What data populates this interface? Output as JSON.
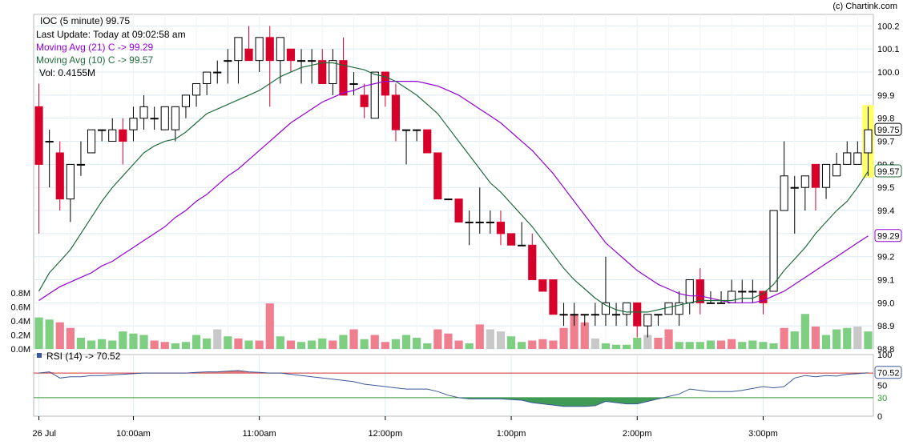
{
  "header": {
    "credit": "(c) Chartink.com",
    "title": "IOC (5 minute) 99.75",
    "last_update": "Last Update: Today at 09:02:58 am",
    "ma21_label": "Moving Avg (21) C -> 99.29",
    "ma10_label": "Moving Avg (10) C -> 99.57",
    "vol_label": "Vol: 0.4155M",
    "rsi_label": "RSI (14) -> 70.52"
  },
  "colors": {
    "up_candle": "#000000",
    "down_candle": "#d6002a",
    "ma21": "#9400d3",
    "ma10": "#1f6b3a",
    "vol_up": "#7fcf83",
    "vol_down": "#ef7f8f",
    "vol_neutral": "#c8c8c8",
    "highlight": "#ffff66",
    "rsi_line": "#3b5998",
    "grid": "#dcebf3"
  },
  "chart_data": [
    {
      "type": "candlestick",
      "title": "IOC (5 minute)",
      "ylim": [
        98.8,
        100.25
      ],
      "y_ticks": [
        98.8,
        98.9,
        99.0,
        99.1,
        99.2,
        99.3,
        99.4,
        99.5,
        99.6,
        99.7,
        99.8,
        99.9,
        100.0,
        100.1,
        100.2
      ],
      "y_tick_labels": [
        "98.8",
        "98.9",
        "99.0",
        "99.1",
        "99.2",
        "99.3",
        "99.4",
        "99.5",
        "99.6",
        "99.7",
        "99.8",
        "99.9",
        "100.0",
        "100.1",
        "100.2"
      ],
      "x_tick_labels": [
        "26 Jul",
        "10:00am",
        "11:00am",
        "12:00pm",
        "1:00pm",
        "2:00pm",
        "3:00pm"
      ],
      "x_tick_index": [
        0,
        9,
        21,
        33,
        45,
        57,
        69
      ],
      "price_tags": [
        {
          "label": "99.75",
          "value": 99.75
        },
        {
          "label": "99.57",
          "value": 99.57
        },
        {
          "label": "99.29",
          "value": 99.29
        }
      ],
      "candles": [
        {
          "o": 99.85,
          "h": 99.95,
          "l": 99.3,
          "c": 99.6
        },
        {
          "o": 99.7,
          "h": 99.75,
          "l": 99.5,
          "c": 99.7
        },
        {
          "o": 99.65,
          "h": 99.7,
          "l": 99.4,
          "c": 99.45
        },
        {
          "o": 99.45,
          "h": 99.6,
          "l": 99.35,
          "c": 99.6
        },
        {
          "o": 99.6,
          "h": 99.7,
          "l": 99.55,
          "c": 99.6
        },
        {
          "o": 99.65,
          "h": 99.75,
          "l": 99.65,
          "c": 99.75
        },
        {
          "o": 99.75,
          "h": 99.75,
          "l": 99.7,
          "c": 99.75
        },
        {
          "o": 99.7,
          "h": 99.8,
          "l": 99.7,
          "c": 99.75
        },
        {
          "o": 99.75,
          "h": 99.8,
          "l": 99.6,
          "c": 99.7
        },
        {
          "o": 99.75,
          "h": 99.85,
          "l": 99.7,
          "c": 99.8
        },
        {
          "o": 99.8,
          "h": 99.9,
          "l": 99.75,
          "c": 99.85
        },
        {
          "o": 99.8,
          "h": 99.85,
          "l": 99.75,
          "c": 99.8
        },
        {
          "o": 99.75,
          "h": 99.85,
          "l": 99.75,
          "c": 99.85
        },
        {
          "o": 99.75,
          "h": 99.85,
          "l": 99.7,
          "c": 99.85
        },
        {
          "o": 99.85,
          "h": 99.9,
          "l": 99.8,
          "c": 99.9
        },
        {
          "o": 99.9,
          "h": 99.95,
          "l": 99.85,
          "c": 99.95
        },
        {
          "o": 99.95,
          "h": 100.0,
          "l": 99.9,
          "c": 100.0
        },
        {
          "o": 100.0,
          "h": 100.05,
          "l": 99.95,
          "c": 100.0
        },
        {
          "o": 100.05,
          "h": 100.1,
          "l": 99.95,
          "c": 100.05
        },
        {
          "o": 100.05,
          "h": 100.15,
          "l": 99.95,
          "c": 100.15
        },
        {
          "o": 100.1,
          "h": 100.2,
          "l": 100.05,
          "c": 100.05
        },
        {
          "o": 100.05,
          "h": 100.15,
          "l": 100.0,
          "c": 100.15
        },
        {
          "o": 100.15,
          "h": 100.2,
          "l": 99.85,
          "c": 100.05
        },
        {
          "o": 100.05,
          "h": 100.15,
          "l": 99.95,
          "c": 100.15
        },
        {
          "o": 100.1,
          "h": 100.1,
          "l": 100.0,
          "c": 100.05
        },
        {
          "o": 100.05,
          "h": 100.1,
          "l": 99.95,
          "c": 100.05
        },
        {
          "o": 100.05,
          "h": 100.1,
          "l": 99.95,
          "c": 100.05
        },
        {
          "o": 100.05,
          "h": 100.1,
          "l": 99.95,
          "c": 99.95
        },
        {
          "o": 99.95,
          "h": 100.1,
          "l": 99.9,
          "c": 100.05
        },
        {
          "o": 100.05,
          "h": 100.15,
          "l": 99.9,
          "c": 99.9
        },
        {
          "o": 99.95,
          "h": 100.0,
          "l": 99.9,
          "c": 99.95
        },
        {
          "o": 99.9,
          "h": 99.95,
          "l": 99.8,
          "c": 99.85
        },
        {
          "o": 99.8,
          "h": 100.0,
          "l": 99.8,
          "c": 100.0
        },
        {
          "o": 100.0,
          "h": 100.0,
          "l": 99.85,
          "c": 99.9
        },
        {
          "o": 99.9,
          "h": 99.95,
          "l": 99.7,
          "c": 99.75
        },
        {
          "o": 99.75,
          "h": 99.75,
          "l": 99.6,
          "c": 99.75
        },
        {
          "o": 99.75,
          "h": 99.75,
          "l": 99.7,
          "c": 99.75
        },
        {
          "o": 99.75,
          "h": 99.75,
          "l": 99.65,
          "c": 99.65
        },
        {
          "o": 99.65,
          "h": 99.65,
          "l": 99.45,
          "c": 99.45
        },
        {
          "o": 99.45,
          "h": 99.45,
          "l": 99.45,
          "c": 99.45
        },
        {
          "o": 99.45,
          "h": 99.45,
          "l": 99.35,
          "c": 99.35
        },
        {
          "o": 99.35,
          "h": 99.4,
          "l": 99.25,
          "c": 99.35
        },
        {
          "o": 99.35,
          "h": 99.5,
          "l": 99.3,
          "c": 99.35
        },
        {
          "o": 99.35,
          "h": 99.4,
          "l": 99.3,
          "c": 99.35
        },
        {
          "o": 99.35,
          "h": 99.4,
          "l": 99.25,
          "c": 99.3
        },
        {
          "o": 99.3,
          "h": 99.3,
          "l": 99.25,
          "c": 99.25
        },
        {
          "o": 99.25,
          "h": 99.35,
          "l": 99.25,
          "c": 99.25
        },
        {
          "o": 99.25,
          "h": 99.3,
          "l": 99.1,
          "c": 99.1
        },
        {
          "o": 99.1,
          "h": 99.1,
          "l": 99.05,
          "c": 99.05
        },
        {
          "o": 99.1,
          "h": 99.1,
          "l": 98.95,
          "c": 98.95
        },
        {
          "o": 98.95,
          "h": 99.0,
          "l": 98.9,
          "c": 98.95
        },
        {
          "o": 98.95,
          "h": 99.0,
          "l": 98.9,
          "c": 98.95
        },
        {
          "o": 98.95,
          "h": 98.95,
          "l": 98.9,
          "c": 98.95
        },
        {
          "o": 98.95,
          "h": 99.0,
          "l": 98.9,
          "c": 98.95
        },
        {
          "o": 98.95,
          "h": 99.2,
          "l": 98.9,
          "c": 99.0
        },
        {
          "o": 98.95,
          "h": 99.0,
          "l": 98.9,
          "c": 98.95
        },
        {
          "o": 98.95,
          "h": 99.0,
          "l": 98.9,
          "c": 99.0
        },
        {
          "o": 99.0,
          "h": 99.0,
          "l": 98.85,
          "c": 98.9
        },
        {
          "o": 98.9,
          "h": 98.95,
          "l": 98.85,
          "c": 98.95
        },
        {
          "o": 98.95,
          "h": 98.95,
          "l": 98.9,
          "c": 98.95
        },
        {
          "o": 98.95,
          "h": 99.0,
          "l": 98.95,
          "c": 99.0
        },
        {
          "o": 98.95,
          "h": 99.05,
          "l": 98.9,
          "c": 99.0
        },
        {
          "o": 99.0,
          "h": 99.1,
          "l": 98.95,
          "c": 99.1
        }
      ],
      "candles_tail": [
        {
          "o": 99.1,
          "h": 99.15,
          "l": 98.95,
          "c": 99.0
        },
        {
          "o": 99.0,
          "h": 99.05,
          "l": 99.0,
          "c": 99.0
        },
        {
          "o": 99.0,
          "h": 99.05,
          "l": 99.0,
          "c": 99.0
        },
        {
          "o": 99.0,
          "h": 99.1,
          "l": 99.0,
          "c": 99.05
        },
        {
          "o": 99.05,
          "h": 99.1,
          "l": 99.0,
          "c": 99.05
        },
        {
          "o": 99.05,
          "h": 99.1,
          "l": 99.0,
          "c": 99.05
        },
        {
          "o": 99.05,
          "h": 99.05,
          "l": 98.95,
          "c": 99.0
        },
        {
          "o": 99.05,
          "h": 99.4,
          "l": 99.05,
          "c": 99.4
        },
        {
          "o": 99.4,
          "h": 99.7,
          "l": 99.4,
          "c": 99.55
        },
        {
          "o": 99.5,
          "h": 99.55,
          "l": 99.3,
          "c": 99.5
        },
        {
          "o": 99.5,
          "h": 99.55,
          "l": 99.4,
          "c": 99.55
        },
        {
          "o": 99.6,
          "h": 99.6,
          "l": 99.4,
          "c": 99.5
        },
        {
          "o": 99.5,
          "h": 99.6,
          "l": 99.45,
          "c": 99.6
        },
        {
          "o": 99.55,
          "h": 99.65,
          "l": 99.55,
          "c": 99.6
        },
        {
          "o": 99.6,
          "h": 99.7,
          "l": 99.6,
          "c": 99.65
        },
        {
          "o": 99.6,
          "h": 99.7,
          "l": 99.6,
          "c": 99.65
        },
        {
          "o": 99.65,
          "h": 99.85,
          "l": 99.55,
          "c": 99.75
        }
      ],
      "ma21": [
        99.01,
        99.04,
        99.07,
        99.09,
        99.11,
        99.13,
        99.16,
        99.18,
        99.21,
        99.24,
        99.27,
        99.3,
        99.33,
        99.37,
        99.4,
        99.44,
        99.47,
        99.51,
        99.55,
        99.58,
        99.62,
        99.66,
        99.7,
        99.74,
        99.78,
        99.81,
        99.84,
        99.87,
        99.89,
        99.91,
        99.92,
        99.94,
        99.95,
        99.96,
        99.96,
        99.96,
        99.96,
        99.95,
        99.94,
        99.92,
        99.9,
        99.87,
        99.84,
        99.81,
        99.78,
        99.74,
        99.7,
        99.66,
        99.61,
        99.56,
        99.5,
        99.44,
        99.38,
        99.32,
        99.26,
        99.22,
        99.18,
        99.14,
        99.11,
        99.08,
        99.06,
        99.04,
        99.03,
        99.03,
        99.02,
        99.01,
        99.0,
        99.0,
        99.0,
        99.01,
        99.03,
        99.05,
        99.08,
        99.11,
        99.14,
        99.17,
        99.2,
        99.23,
        99.26,
        99.29
      ],
      "ma10": [
        99.05,
        99.13,
        99.18,
        99.23,
        99.3,
        99.37,
        99.44,
        99.5,
        99.55,
        99.6,
        99.65,
        99.68,
        99.7,
        99.71,
        99.74,
        99.78,
        99.82,
        99.84,
        99.86,
        99.88,
        99.9,
        99.92,
        99.95,
        99.98,
        100.0,
        100.02,
        100.03,
        100.04,
        100.04,
        100.03,
        100.02,
        100.01,
        99.99,
        99.98,
        99.96,
        99.93,
        99.9,
        99.86,
        99.82,
        99.76,
        99.7,
        99.64,
        99.58,
        99.52,
        99.48,
        99.43,
        99.38,
        99.33,
        99.27,
        99.21,
        99.15,
        99.1,
        99.06,
        99.02,
        98.99,
        98.97,
        98.96,
        98.96,
        98.96,
        98.97,
        98.98,
        98.99,
        99.0,
        99.01,
        99.01,
        99.01,
        99.01,
        99.02,
        99.02,
        99.04,
        99.08,
        99.14,
        99.19,
        99.24,
        99.3,
        99.35,
        99.4,
        99.44,
        99.5,
        99.57
      ]
    },
    {
      "type": "bar",
      "title": "Vol",
      "ylim": [
        0,
        0.8
      ],
      "y_ticks": [
        0,
        0.2,
        0.4,
        0.6,
        0.8
      ],
      "y_tick_labels": [
        "0.0M",
        "0.2M",
        "0.4M",
        "0.6M",
        "0.8M"
      ],
      "volumes": [
        0.45,
        0.42,
        0.38,
        0.3,
        0.16,
        0.12,
        0.14,
        0.12,
        0.25,
        0.22,
        0.2,
        0.12,
        0.1,
        0.08,
        0.1,
        0.2,
        0.15,
        0.28,
        0.18,
        0.15,
        0.12,
        0.12,
        0.65,
        0.18,
        0.12,
        0.1,
        0.12,
        0.15,
        0.12,
        0.2,
        0.28,
        0.14,
        0.2,
        0.1,
        0.14,
        0.2,
        0.16,
        0.08,
        0.28,
        0.22,
        0.12,
        0.08,
        0.35,
        0.28,
        0.25,
        0.18,
        0.1,
        0.12,
        0.14,
        0.12,
        0.3,
        0.5,
        0.38,
        0.15,
        0.08,
        0.06,
        0.06,
        0.16,
        0.2,
        0.16,
        0.28,
        0.1,
        0.1,
        0.1,
        0.12,
        0.12,
        0.14,
        0.1,
        0.12,
        0.1,
        0.08,
        0.3,
        0.25,
        0.5,
        0.32,
        0.2,
        0.28,
        0.3,
        0.32,
        0.25
      ],
      "volume_color": [
        "up",
        "up",
        "down",
        "down",
        "up",
        "up",
        "up",
        "up",
        "up",
        "up",
        "up",
        "down",
        "down",
        "up",
        "up",
        "up",
        "up",
        "neutral",
        "up",
        "down",
        "up",
        "down",
        "down",
        "up",
        "down",
        "up",
        "up",
        "up",
        "down",
        "up",
        "down",
        "up",
        "down",
        "down",
        "up",
        "up",
        "up",
        "up",
        "down",
        "down",
        "down",
        "up",
        "down",
        "neutral",
        "neutral",
        "up",
        "up",
        "down",
        "down",
        "down",
        "down",
        "down",
        "down",
        "neutral",
        "up",
        "up",
        "up",
        "up",
        "neutral",
        "down",
        "down",
        "up",
        "up",
        "up",
        "up",
        "down",
        "down",
        "up",
        "up",
        "up",
        "up",
        "down",
        "up",
        "up",
        "down",
        "up",
        "up",
        "up",
        "neutral",
        "up"
      ]
    },
    {
      "type": "line",
      "title": "RSI (14)",
      "ylim": [
        0,
        100
      ],
      "y_ticks": [
        0,
        30,
        50,
        70,
        100
      ],
      "y_tick_labels": [
        "0",
        "30",
        "50",
        "70",
        "100"
      ],
      "last_label": "70.52",
      "rsi": [
        70,
        72,
        62,
        64,
        64,
        66,
        66,
        67,
        68,
        69,
        70,
        70,
        70,
        70,
        70,
        71,
        72,
        72,
        73,
        74,
        72,
        71,
        70,
        70,
        68,
        66,
        64,
        62,
        60,
        58,
        56,
        52,
        50,
        48,
        46,
        44,
        44,
        44,
        40,
        34,
        30,
        28,
        28,
        28,
        28,
        27,
        26,
        22,
        20,
        18,
        16,
        16,
        16,
        17,
        24,
        22,
        20,
        20,
        24,
        28,
        32,
        36,
        44,
        42,
        40,
        40,
        40,
        42,
        45,
        48,
        46,
        48,
        62,
        66,
        64,
        66,
        65,
        68,
        69,
        70.52
      ]
    }
  ]
}
